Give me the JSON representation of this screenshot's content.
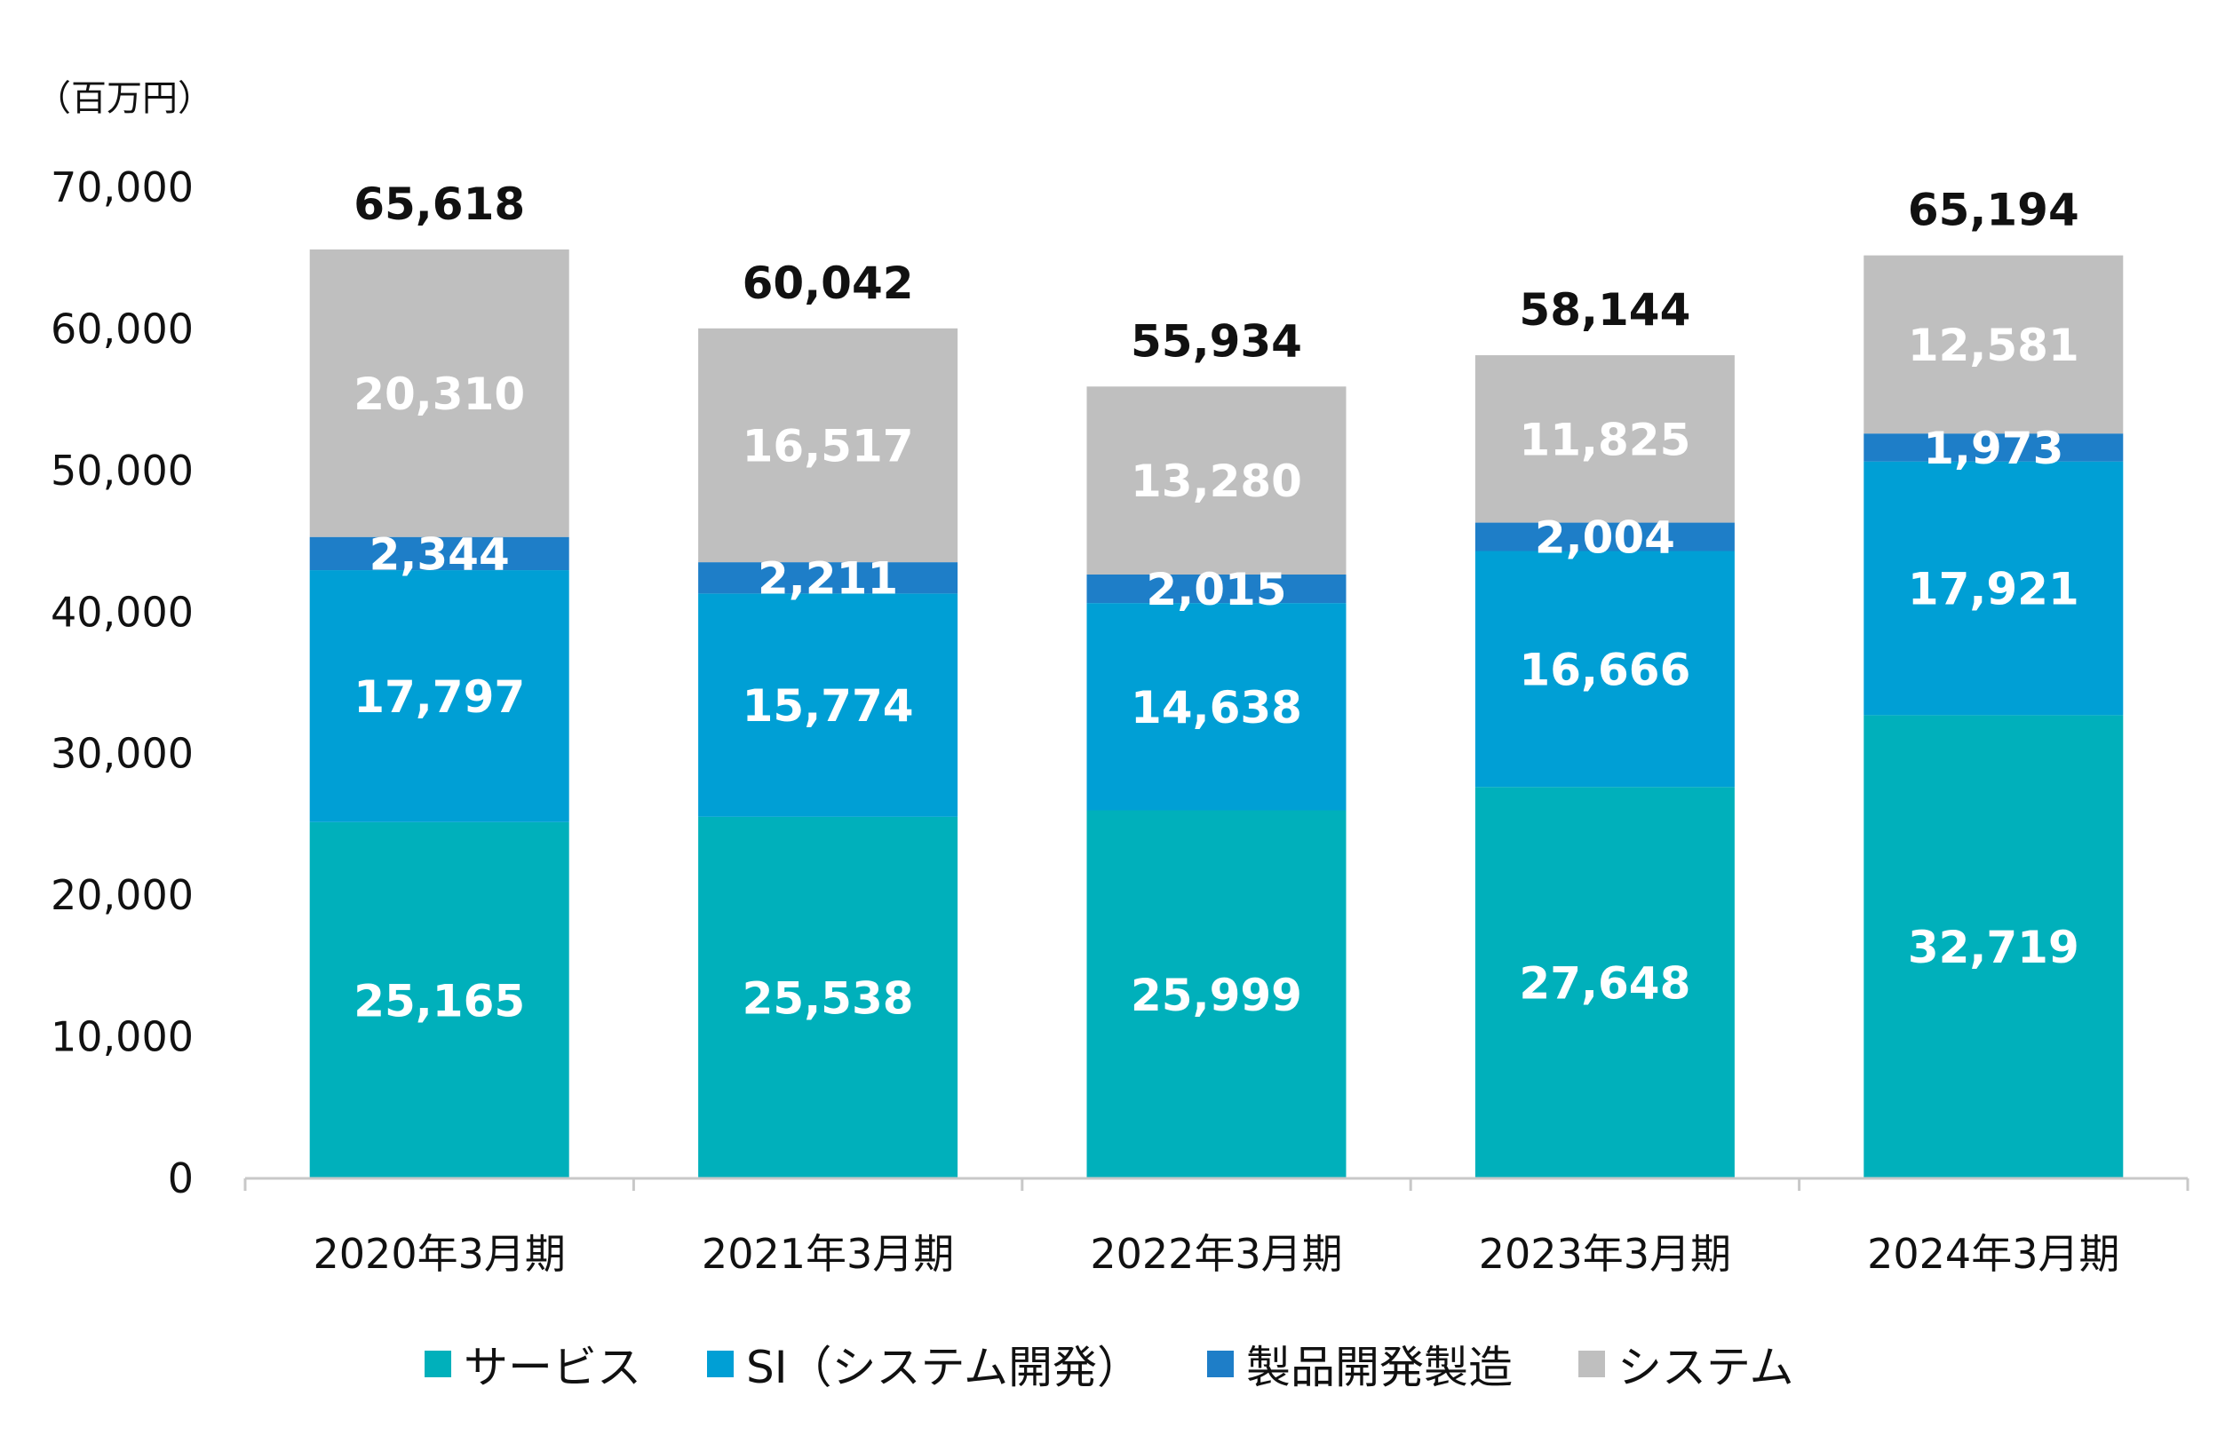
{
  "colors": {
    "service": "#00b0bb",
    "si": "#009fd5",
    "product": "#1e7ec8",
    "system": "#bfbfbf",
    "axis": "#c8c8c8",
    "text": "#111111",
    "segment_label": "#ffffff"
  },
  "chart_data": {
    "type": "bar",
    "stacked": true,
    "unit_label": "（百万円）",
    "categories": [
      "2020年3月期",
      "2021年3月期",
      "2022年3月期",
      "2023年3月期",
      "2024年3月期"
    ],
    "series": [
      {
        "key": "service",
        "name": "サービス",
        "values": [
          25165,
          25538,
          25999,
          27648,
          32719
        ]
      },
      {
        "key": "si",
        "name": "SI（システム開発）",
        "values": [
          17797,
          15774,
          14638,
          16666,
          17921
        ]
      },
      {
        "key": "product",
        "name": "製品開発製造",
        "values": [
          2344,
          2211,
          2015,
          2004,
          1973
        ]
      },
      {
        "key": "system",
        "name": "システム",
        "values": [
          20310,
          16517,
          13280,
          11825,
          12581
        ]
      }
    ],
    "totals": [
      65618,
      60042,
      55934,
      58144,
      65194
    ],
    "ylim": [
      0,
      70000
    ],
    "yticks": [
      0,
      10000,
      20000,
      30000,
      40000,
      50000,
      60000,
      70000
    ],
    "ytick_labels": [
      "0",
      "10,000",
      "20,000",
      "30,000",
      "40,000",
      "50,000",
      "60,000",
      "70,000"
    ],
    "legend_position": "bottom",
    "grid": false
  }
}
